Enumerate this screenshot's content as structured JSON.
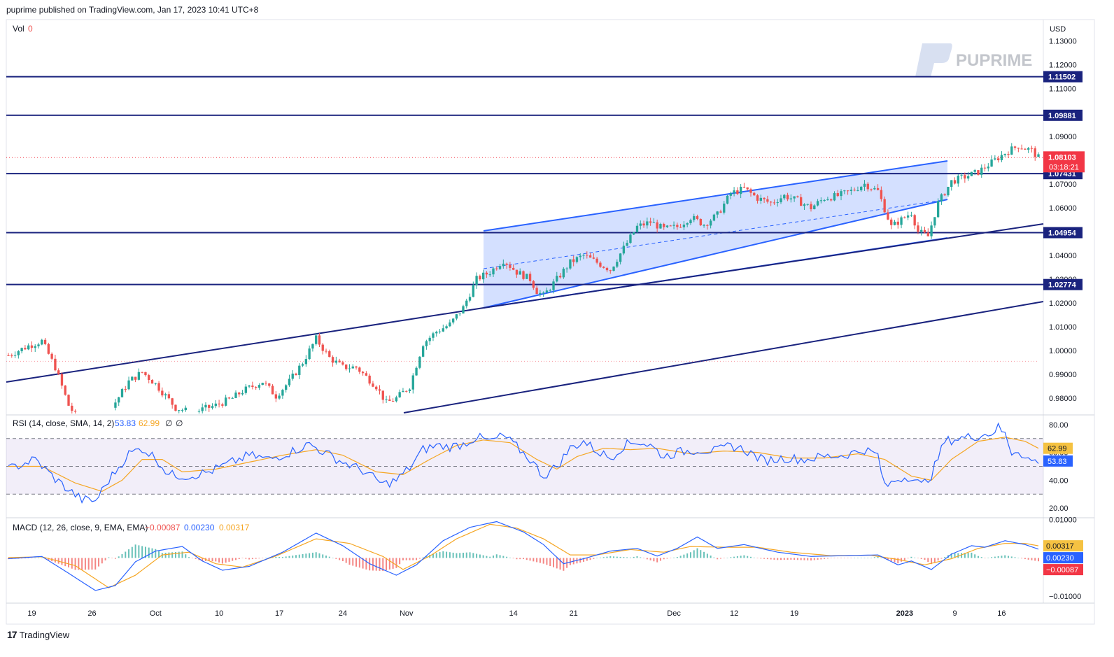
{
  "header": {
    "publisher_line": "puprime published on TradingView.com, Jan 17, 2023 10:41 UTC+8"
  },
  "watermark": {
    "text": "PUPRIME"
  },
  "footer": {
    "brand": "TradingView"
  },
  "colors": {
    "up": "#26a69a",
    "down": "#ef5350",
    "level": "#1a237e",
    "channel": "#2962ff",
    "rsi": "#2962ff",
    "rsi_sma": "#f5a623",
    "macd": "#2962ff",
    "signal": "#f5a623",
    "price_tag": "#f23645"
  },
  "chart_data": [
    {
      "type": "candlestick",
      "title": "",
      "legend": {
        "label": "Vol",
        "value": "0"
      },
      "currency": "USD",
      "ylim": [
        0.973,
        1.139
      ],
      "y_ticks": [
        "1.13000",
        "1.12000",
        "1.11000",
        "1.10000",
        "1.09000",
        "1.08000",
        "1.07000",
        "1.06000",
        "1.05000",
        "1.04000",
        "1.03000",
        "1.02000",
        "1.01000",
        "1.00000",
        "0.99000",
        "0.98000"
      ],
      "x_ticks": [
        "19",
        "26",
        "Oct",
        "10",
        "17",
        "24",
        "Nov",
        "14",
        "21",
        "Dec",
        "12",
        "19",
        "2023",
        "9",
        "16"
      ],
      "horizontal_levels": [
        {
          "label": "1.11502",
          "value": 1.11502
        },
        {
          "label": "1.09881",
          "value": 1.09881
        },
        {
          "label": "1.07431",
          "value": 1.07431
        },
        {
          "label": "1.04954",
          "value": 1.04954
        },
        {
          "label": "1.02774",
          "value": 1.02774
        }
      ],
      "last_price": {
        "label": "1.08103",
        "value": 1.08103,
        "countdown": "03:18:21"
      },
      "close_path": [
        [
          0,
          0.998
        ],
        [
          6,
          1.002
        ],
        [
          10,
          1.004
        ],
        [
          14,
          0.993
        ],
        [
          18,
          0.977
        ],
        [
          22,
          0.969
        ],
        [
          26,
          0.964
        ],
        [
          30,
          0.974
        ],
        [
          36,
          0.987
        ],
        [
          40,
          0.991
        ],
        [
          44,
          0.986
        ],
        [
          50,
          0.976
        ],
        [
          55,
          0.974
        ],
        [
          62,
          0.977
        ],
        [
          67,
          0.98
        ],
        [
          70,
          0.983
        ],
        [
          76,
          0.987
        ],
        [
          80,
          0.981
        ],
        [
          84,
          0.987
        ],
        [
          88,
          0.995
        ],
        [
          92,
          1.005
        ],
        [
          96,
          0.997
        ],
        [
          100,
          0.993
        ],
        [
          104,
          0.993
        ],
        [
          110,
          0.985
        ],
        [
          113,
          0.978
        ],
        [
          116,
          0.98
        ],
        [
          120,
          0.985
        ],
        [
          124,
          1.003
        ],
        [
          128,
          1.008
        ],
        [
          132,
          1.011
        ],
        [
          136,
          1.018
        ],
        [
          140,
          1.03
        ],
        [
          144,
          1.033
        ],
        [
          148,
          1.038
        ],
        [
          152,
          1.033
        ],
        [
          156,
          1.03
        ],
        [
          158,
          1.025
        ],
        [
          160,
          1.023
        ],
        [
          164,
          1.03
        ],
        [
          168,
          1.037
        ],
        [
          172,
          1.04
        ],
        [
          176,
          1.037
        ],
        [
          180,
          1.034
        ],
        [
          184,
          1.043
        ],
        [
          188,
          1.052
        ],
        [
          192,
          1.054
        ],
        [
          196,
          1.051
        ],
        [
          200,
          1.052
        ],
        [
          204,
          1.056
        ],
        [
          208,
          1.053
        ],
        [
          212,
          1.057
        ],
        [
          216,
          1.066
        ],
        [
          220,
          1.068
        ],
        [
          224,
          1.064
        ],
        [
          228,
          1.062
        ],
        [
          232,
          1.065
        ],
        [
          236,
          1.063
        ],
        [
          240,
          1.06
        ],
        [
          244,
          1.064
        ],
        [
          248,
          1.065
        ],
        [
          252,
          1.067
        ],
        [
          256,
          1.07
        ],
        [
          260,
          1.067
        ],
        [
          264,
          1.052
        ],
        [
          268,
          1.056
        ],
        [
          270,
          1.058
        ],
        [
          272,
          1.05
        ],
        [
          275,
          1.048
        ],
        [
          278,
          1.062
        ],
        [
          282,
          1.071
        ],
        [
          286,
          1.073
        ],
        [
          290,
          1.075
        ],
        [
          294,
          1.079
        ],
        [
          298,
          1.083
        ],
        [
          302,
          1.086
        ],
        [
          306,
          1.084
        ],
        [
          308,
          1.081
        ]
      ]
    },
    {
      "type": "line",
      "title": "",
      "legend": {
        "label": "RSI (14, close, SMA, 14, 2)",
        "rsi": "53.83",
        "sma": "62.99",
        "extra1": "∅",
        "extra2": "∅"
      },
      "ylim": [
        13,
        87
      ],
      "y_ticks": [
        "80.00",
        "60.00",
        "40.00",
        "20.00"
      ],
      "bands": [
        70,
        50,
        30
      ],
      "series": [
        {
          "name": "RSI",
          "points": [
            [
              0,
              48
            ],
            [
              8,
              55
            ],
            [
              14,
              41
            ],
            [
              18,
              33
            ],
            [
              22,
              26
            ],
            [
              26,
              25
            ],
            [
              30,
              40
            ],
            [
              36,
              59
            ],
            [
              40,
              63
            ],
            [
              44,
              56
            ],
            [
              48,
              44
            ],
            [
              54,
              43
            ],
            [
              60,
              46
            ],
            [
              66,
              52
            ],
            [
              72,
              58
            ],
            [
              78,
              55
            ],
            [
              84,
              60
            ],
            [
              90,
              66
            ],
            [
              96,
              58
            ],
            [
              100,
              53
            ],
            [
              106,
              47
            ],
            [
              112,
              37
            ],
            [
              116,
              40
            ],
            [
              120,
              49
            ],
            [
              124,
              62
            ],
            [
              128,
              65
            ],
            [
              132,
              64
            ],
            [
              136,
              66
            ],
            [
              140,
              71
            ],
            [
              144,
              68
            ],
            [
              148,
              72
            ],
            [
              152,
              64
            ],
            [
              156,
              55
            ],
            [
              160,
              43
            ],
            [
              164,
              50
            ],
            [
              168,
              63
            ],
            [
              172,
              68
            ],
            [
              176,
              61
            ],
            [
              180,
              56
            ],
            [
              184,
              65
            ],
            [
              188,
              68
            ],
            [
              192,
              65
            ],
            [
              196,
              57
            ],
            [
              200,
              60
            ],
            [
              206,
              62
            ],
            [
              212,
              61
            ],
            [
              216,
              65
            ],
            [
              220,
              62
            ],
            [
              226,
              54
            ],
            [
              232,
              56
            ],
            [
              238,
              55
            ],
            [
              244,
              57
            ],
            [
              250,
              58
            ],
            [
              256,
              62
            ],
            [
              260,
              58
            ],
            [
              262,
              35
            ],
            [
              266,
              41
            ],
            [
              270,
              43
            ],
            [
              273,
              36
            ],
            [
              276,
              44
            ],
            [
              280,
              68
            ],
            [
              284,
              70
            ],
            [
              290,
              72
            ],
            [
              294,
              74
            ],
            [
              296,
              78
            ],
            [
              298,
              73
            ],
            [
              300,
              60
            ],
            [
              302,
              62
            ],
            [
              304,
              56
            ],
            [
              306,
              54
            ],
            [
              308,
              53.83
            ]
          ]
        },
        {
          "name": "SMA",
          "points": [
            [
              0,
              50
            ],
            [
              10,
              50
            ],
            [
              20,
              38
            ],
            [
              28,
              32
            ],
            [
              34,
              40
            ],
            [
              40,
              55
            ],
            [
              46,
              55
            ],
            [
              52,
              46
            ],
            [
              62,
              48
            ],
            [
              72,
              53
            ],
            [
              82,
              58
            ],
            [
              92,
              62
            ],
            [
              100,
              58
            ],
            [
              110,
              46
            ],
            [
              118,
              44
            ],
            [
              126,
              55
            ],
            [
              134,
              65
            ],
            [
              142,
              69
            ],
            [
              150,
              67
            ],
            [
              158,
              55
            ],
            [
              164,
              48
            ],
            [
              170,
              57
            ],
            [
              178,
              63
            ],
            [
              186,
              62
            ],
            [
              194,
              63
            ],
            [
              204,
              59
            ],
            [
              214,
              61
            ],
            [
              224,
              60
            ],
            [
              234,
              56
            ],
            [
              244,
              56
            ],
            [
              254,
              59
            ],
            [
              262,
              55
            ],
            [
              270,
              43
            ],
            [
              276,
              40
            ],
            [
              282,
              55
            ],
            [
              290,
              68
            ],
            [
              298,
              71
            ],
            [
              304,
              68
            ],
            [
              308,
              62.99
            ]
          ]
        }
      ]
    },
    {
      "type": "line",
      "title": "",
      "legend": {
        "label": "MACD (12, 26, close, 9, EMA, EMA)",
        "hist": "−0.00087",
        "macd": "0.00230",
        "signal": "0.00317"
      },
      "ylim": [
        -0.0118,
        0.0105
      ],
      "y_ticks": [
        "0.01000",
        "−0.01000"
      ],
      "series": [
        {
          "name": "MACD",
          "points": [
            [
              0,
              -0.0002
            ],
            [
              10,
              0.0004
            ],
            [
              18,
              -0.004
            ],
            [
              26,
              -0.0085
            ],
            [
              32,
              -0.0072
            ],
            [
              38,
              -0.001
            ],
            [
              44,
              0.0018
            ],
            [
              52,
              0.003
            ],
            [
              58,
              -0.0008
            ],
            [
              64,
              -0.0032
            ],
            [
              72,
              -0.0022
            ],
            [
              82,
              0.0015
            ],
            [
              92,
              0.0065
            ],
            [
              100,
              0.0032
            ],
            [
              108,
              -0.0015
            ],
            [
              116,
              -0.0045
            ],
            [
              122,
              -0.0018
            ],
            [
              130,
              0.0045
            ],
            [
              138,
              0.008
            ],
            [
              146,
              0.0095
            ],
            [
              154,
              0.0068
            ],
            [
              160,
              0.0035
            ],
            [
              166,
              -0.0015
            ],
            [
              172,
              -0.0002
            ],
            [
              180,
              0.0018
            ],
            [
              188,
              0.0025
            ],
            [
              194,
              0.0005
            ],
            [
              200,
              0.0025
            ],
            [
              206,
              0.0055
            ],
            [
              212,
              0.0025
            ],
            [
              220,
              0.0035
            ],
            [
              230,
              0.0015
            ],
            [
              240,
              0.0004
            ],
            [
              250,
              0.0006
            ],
            [
              260,
              0.0008
            ],
            [
              266,
              -0.0018
            ],
            [
              270,
              -0.0008
            ],
            [
              276,
              -0.003
            ],
            [
              282,
              0.001
            ],
            [
              288,
              0.0032
            ],
            [
              292,
              0.0028
            ],
            [
              298,
              0.0045
            ],
            [
              304,
              0.0035
            ],
            [
              308,
              0.0023
            ]
          ]
        },
        {
          "name": "Signal",
          "points": [
            [
              0,
              0.0001
            ],
            [
              10,
              0.0003
            ],
            [
              20,
              -0.002
            ],
            [
              30,
              -0.0078
            ],
            [
              38,
              -0.0045
            ],
            [
              46,
              0.0008
            ],
            [
              54,
              0.0015
            ],
            [
              62,
              -0.0015
            ],
            [
              70,
              -0.0024
            ],
            [
              80,
              0.0005
            ],
            [
              92,
              0.005
            ],
            [
              102,
              0.0038
            ],
            [
              112,
              0.0004
            ],
            [
              118,
              -0.003
            ],
            [
              126,
              0.0005
            ],
            [
              134,
              0.005
            ],
            [
              144,
              0.0088
            ],
            [
              152,
              0.0078
            ],
            [
              160,
              0.005
            ],
            [
              168,
              0.0008
            ],
            [
              176,
              0.0008
            ],
            [
              186,
              0.0022
            ],
            [
              196,
              0.0015
            ],
            [
              204,
              0.003
            ],
            [
              214,
              0.0028
            ],
            [
              224,
              0.0028
            ],
            [
              234,
              0.0015
            ],
            [
              246,
              0.0006
            ],
            [
              258,
              0.0007
            ],
            [
              266,
              -0.0004
            ],
            [
              274,
              -0.0018
            ],
            [
              282,
              -0.0002
            ],
            [
              290,
              0.0025
            ],
            [
              298,
              0.0038
            ],
            [
              304,
              0.0038
            ],
            [
              308,
              0.00317
            ]
          ]
        }
      ]
    }
  ]
}
